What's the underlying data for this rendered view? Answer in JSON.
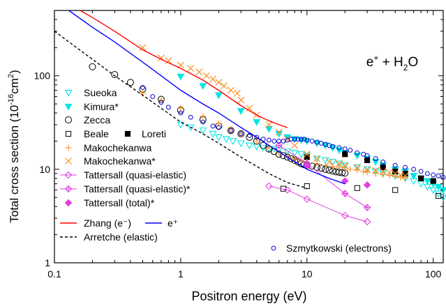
{
  "chart_data": {
    "type": "scatter",
    "title": "",
    "annotation_parts": {
      "particle": "e",
      "particle_sup": "+",
      "plus": " + H",
      "sub": "2",
      "molecule": "O"
    },
    "xlabel": "Positron energy (eV)",
    "ylabel_parts": {
      "main": "Total cross section (10",
      "sup": "-16",
      "unit": "cm",
      "unit_sup": "2",
      "close": ")"
    },
    "x_scale": "log",
    "y_scale": "log",
    "xlim": [
      0.1,
      120
    ],
    "ylim": [
      1,
      500
    ],
    "x_ticks": [
      0.1,
      1,
      10,
      100
    ],
    "x_tick_labels": [
      "0.1",
      "1",
      "10",
      "100"
    ],
    "y_ticks": [
      1,
      10,
      100
    ],
    "y_tick_labels": [
      "1",
      "10",
      "100"
    ],
    "grid": false,
    "legend_position": "left",
    "series": [
      {
        "name": "Sueoka",
        "marker": "triangle-down-open",
        "color": "#00e5e5",
        "x": [
          1.0,
          1.2,
          1.5,
          1.8,
          2.0,
          2.3,
          2.6,
          3.0,
          3.5,
          4.0,
          4.5,
          5.0,
          5.5,
          6.0,
          7.0,
          8.0,
          9.0,
          10,
          12,
          14,
          16,
          18,
          20,
          25,
          30,
          35,
          40,
          50,
          60,
          70,
          80,
          90,
          100,
          110,
          120
        ],
        "y": [
          30,
          28,
          26,
          24,
          22,
          21,
          20,
          19,
          18,
          17.5,
          17,
          16.5,
          16.5,
          16,
          15.5,
          15,
          14.5,
          14,
          13,
          12.5,
          12,
          11.5,
          11,
          10.5,
          10,
          9.5,
          9,
          8.5,
          8,
          7.5,
          7,
          6.5,
          6,
          5.5,
          5
        ]
      },
      {
        "name": "Kimura*",
        "marker": "triangle-down-filled",
        "color": "#00e5e5",
        "x": [
          1.0,
          1.5,
          2.0,
          3.0,
          4.0,
          5.0,
          6.0,
          7.0,
          8.0,
          9.0,
          10,
          12,
          14,
          16,
          18,
          20,
          25,
          30,
          35,
          40,
          50,
          60,
          70,
          80,
          90,
          100,
          110,
          120
        ],
        "y": [
          98,
          78,
          62,
          42,
          32,
          27,
          24,
          22,
          21,
          20.5,
          20,
          19,
          18,
          17,
          16,
          15,
          14,
          13,
          12,
          11,
          10,
          9.5,
          8.5,
          8,
          7.5,
          7,
          6.5,
          6
        ]
      },
      {
        "name": "Zecca",
        "marker": "circle-open",
        "color": "#000000",
        "x": [
          0.2,
          0.3,
          0.4,
          0.5,
          0.7,
          1.0,
          1.5,
          2.0,
          2.5,
          3.0,
          3.5,
          4.0,
          4.5,
          5.0,
          5.5,
          6.0,
          6.5,
          7.0,
          7.5,
          8.0,
          8.5,
          9.0,
          9.5,
          10,
          11,
          12,
          13,
          14,
          15,
          16,
          17,
          18,
          19,
          20
        ],
        "y": [
          125,
          103,
          85,
          72,
          56,
          43,
          34,
          29,
          26,
          24,
          22,
          20,
          18,
          16.5,
          15.5,
          14.5,
          14,
          13.5,
          13,
          12.5,
          12,
          11.5,
          11.2,
          11,
          10.8,
          10.5,
          10.3,
          10,
          9.8,
          9.6,
          9.4,
          9.3,
          9.2,
          9.1
        ]
      },
      {
        "name": "Beale",
        "marker": "square-open",
        "color": "#000000",
        "x": [
          6.5,
          10,
          25,
          50,
          110
        ],
        "y": [
          6.2,
          6.6,
          6.3,
          6.0,
          5.2
        ]
      },
      {
        "name": "Loreti",
        "marker": "square-filled",
        "color": "#000000",
        "x": [
          10,
          20,
          30,
          40,
          50,
          60,
          80,
          100
        ],
        "y": [
          13.5,
          14.5,
          12.5,
          10.5,
          9.5,
          9.0,
          8.0,
          7.5
        ]
      },
      {
        "name": "Makochekanwa",
        "marker": "plus",
        "color": "#ff8c1a",
        "x": [
          0.5,
          0.7,
          1.0,
          1.5,
          2.0,
          2.5,
          3.0,
          4.0,
          5.0,
          6.0,
          7.0,
          8.0,
          9.0,
          10,
          12,
          14,
          16,
          18,
          20,
          22,
          25,
          28,
          30,
          35,
          40,
          45,
          50,
          55,
          60
        ],
        "y": [
          65,
          55,
          45,
          37,
          31,
          27,
          24,
          20,
          17,
          15,
          14,
          13,
          12.5,
          12,
          11.5,
          11,
          10.7,
          10.5,
          10.3,
          10,
          9.8,
          9.5,
          9.3,
          9,
          8.8,
          8.6,
          8.4,
          8.2,
          8
        ]
      },
      {
        "name": "Makochekanwa*",
        "marker": "cross",
        "color": "#ff8c1a",
        "x": [
          0.5,
          0.7,
          0.8,
          1.0,
          1.2,
          1.4,
          1.6,
          1.8,
          2.0,
          2.2,
          2.5,
          2.8,
          3.0,
          3.5,
          4.0,
          5.0,
          6.0,
          7.0,
          8.0,
          10,
          12,
          15,
          18,
          20,
          25,
          30,
          35,
          40,
          45,
          50,
          55,
          60
        ],
        "y": [
          200,
          155,
          145,
          130,
          120,
          110,
          100,
          92,
          85,
          78,
          70,
          65,
          55,
          45,
          38,
          30,
          25,
          21,
          18,
          14.5,
          13,
          12,
          11.5,
          11,
          10.5,
          10,
          9.7,
          9.5,
          9.2,
          9,
          8.7,
          8.5
        ]
      },
      {
        "name": "Tattersall (quasi-elastic)",
        "marker": "diamond-open",
        "color": "#e040e0",
        "x": [
          5,
          7,
          10,
          20,
          30
        ],
        "y": [
          6.6,
          6.0,
          4.8,
          3.2,
          2.75
        ]
      },
      {
        "name": "Tattersall (quasi-elastic)*",
        "marker": "diamond-plus",
        "color": "#e040e0",
        "x": [
          6,
          10,
          20,
          30
        ],
        "y": [
          18,
          11.5,
          5.5,
          3.9
        ]
      },
      {
        "name": "Tattersall (total)*",
        "marker": "diamond-filled",
        "color": "#e040e0",
        "x": [
          10,
          20,
          30
        ],
        "y": [
          10.8,
          7.5,
          6.8
        ]
      },
      {
        "name": "Zhang (e⁻)",
        "marker": "line",
        "color": "#ff0000",
        "x": [
          0.16,
          0.2,
          0.3,
          0.5,
          0.7,
          1.0,
          1.5,
          2.0,
          3.0,
          4.0,
          5.0,
          6.0,
          7.0
        ],
        "y": [
          500,
          420,
          300,
          190,
          150,
          120,
          90,
          70,
          48,
          38,
          33,
          30,
          28
        ]
      },
      {
        "name": "e⁺",
        "marker": "line",
        "color": "#0000ff",
        "x": [
          0.13,
          0.2,
          0.3,
          0.5,
          0.7,
          1.0,
          1.5,
          2.0,
          3.0,
          4.0,
          5.0,
          7.0,
          10,
          15,
          20
        ],
        "y": [
          500,
          330,
          230,
          140,
          100,
          70,
          50,
          40,
          28,
          22,
          18,
          13.5,
          10,
          8,
          7
        ]
      },
      {
        "name": "Arretche (elastic)",
        "marker": "dashed-line",
        "color": "#000000",
        "x": [
          0.1,
          0.15,
          0.2,
          0.3,
          0.5,
          0.7,
          1.0,
          1.5,
          2.0,
          3.0,
          5.0,
          7.0,
          10
        ],
        "y": [
          300,
          200,
          150,
          100,
          62,
          45,
          32,
          24,
          19,
          13.5,
          9,
          7.2,
          6.3
        ]
      },
      {
        "name": "Szmytkowski (electrons)",
        "marker": "circle-open-small",
        "color": "#0000cc",
        "x": [
          0.5,
          0.6,
          0.7,
          0.8,
          1.0,
          1.2,
          1.5,
          1.8,
          2.0,
          2.5,
          3.0,
          3.5,
          4.0,
          4.5,
          5.0,
          5.5,
          6.0,
          6.5,
          7.0,
          7.5,
          8.0,
          8.5,
          9.0,
          9.5,
          10,
          11,
          12,
          13,
          14,
          15,
          16,
          18,
          20,
          22,
          25,
          28,
          30,
          35,
          40,
          50,
          60,
          70,
          80,
          90,
          100,
          110,
          120
        ],
        "y": [
          75,
          60,
          52,
          46,
          40,
          36,
          32,
          29,
          28,
          26,
          24,
          23,
          22,
          21,
          20.5,
          20,
          20,
          20,
          20.5,
          21,
          21,
          21,
          21,
          21,
          20.5,
          20,
          19.5,
          19,
          18.5,
          18,
          17.5,
          17,
          16.5,
          16,
          15,
          14.5,
          14,
          13,
          12,
          11,
          10.5,
          10,
          9.5,
          9,
          8.7,
          8.5,
          8.2
        ]
      }
    ]
  }
}
